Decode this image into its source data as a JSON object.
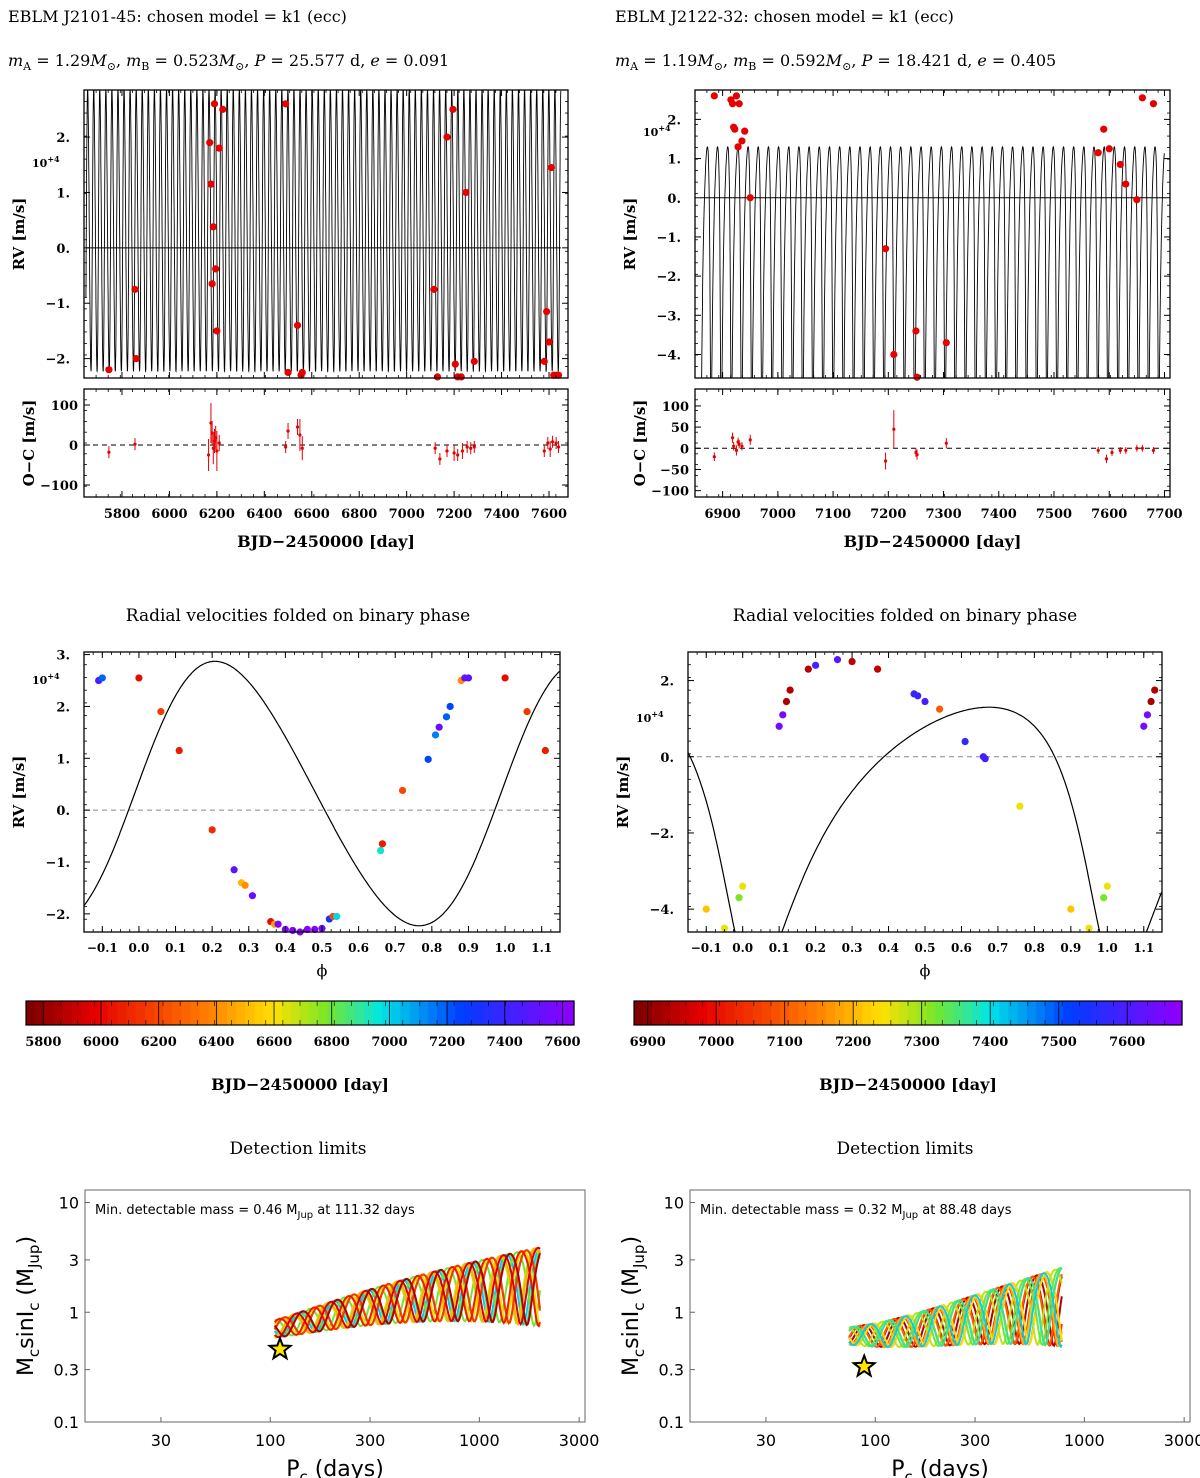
{
  "colors": {
    "point": "#e60000",
    "model": "#000000",
    "frame": "#000000",
    "star": "#ffe600"
  },
  "left": {
    "title": "EBLM J2101-45: chosen model = k1 (ecc)",
    "params": {
      "mA_label": "m",
      "mA_sub": "A",
      "mA_val": " = 1.29",
      "mA_unit": "M",
      "mA_sun": "⊙",
      "mB_label": "m",
      "mB_sub": "B",
      "mB_val": " = 0.523",
      "mB_unit": "M",
      "mB_sun": "⊙",
      "P_label": "P",
      "P_val": " = 25.577 d, ",
      "e_label": "e",
      "e_val": " = 0.091"
    },
    "phase_title": "Radial velocities folded on binary phase",
    "colorbar_ticks": [
      "5800",
      "6000",
      "6200",
      "6400",
      "6600",
      "6800",
      "7000",
      "7200",
      "7400",
      "7600"
    ],
    "colorbar_xlabel": "BJD−2450000 [day]",
    "detection_title": "Detection limits",
    "detection_note": "Min. detectable mass = 0.46 M",
    "detection_note_sub": "Jup",
    "detection_note_end": " at 111.32 days"
  },
  "right": {
    "title": "EBLM J2122-32: chosen model = k1 (ecc)",
    "params": {
      "mA_label": "m",
      "mA_sub": "A",
      "mA_val": " = 1.19",
      "mA_unit": "M",
      "mA_sun": "⊙",
      "mB_label": "m",
      "mB_sub": "B",
      "mB_val": " = 0.592",
      "mB_unit": "M",
      "mB_sun": "⊙",
      "P_label": "P",
      "P_val": " = 18.421 d, ",
      "e_label": "e",
      "e_val": " = 0.405"
    },
    "phase_title": "Radial velocities folded on binary phase",
    "colorbar_ticks": [
      "6900",
      "7000",
      "7100",
      "7200",
      "7300",
      "7400",
      "7500",
      "7600"
    ],
    "colorbar_xlabel": "BJD−2450000 [day]",
    "detection_title": "Detection limits",
    "detection_note": "Min. detectable mass = 0.32 M",
    "detection_note_sub": "Jup",
    "detection_note_end": " at 88.48 days"
  },
  "chart_data": [
    {
      "id": "L_rv_time",
      "type": "scatter",
      "title": "",
      "xlabel": "BJD−2450000 [day]",
      "ylabel": "RV [m/s]",
      "y_multiplier": "10+4",
      "xlim": [
        5640,
        7680
      ],
      "ylim": [
        -2.35,
        2.85
      ],
      "xticks": [
        5800,
        6000,
        6200,
        6400,
        6600,
        6800,
        7000,
        7200,
        7400,
        7600
      ],
      "yticks": [
        -2,
        -1,
        0,
        1,
        2
      ],
      "ytick_labels": [
        "−2.",
        "−1.",
        "0.",
        "1.",
        "2."
      ],
      "model": {
        "K": 2.55,
        "offset": 0.3,
        "period": 25.577,
        "t0": 5650
      },
      "points": {
        "x": [
          5745,
          5855,
          5860,
          6170,
          6175,
          6180,
          6185,
          6190,
          6195,
          6200,
          6210,
          6225,
          6490,
          6500,
          6540,
          6555,
          6560,
          7115,
          7130,
          7170,
          7195,
          7205,
          7215,
          7230,
          7250,
          7285,
          7580,
          7590,
          7600,
          7610,
          7620,
          7630,
          7640
        ],
        "y": [
          -2.2,
          -0.75,
          -2.0,
          1.9,
          1.15,
          -0.65,
          0.38,
          2.6,
          -0.38,
          -1.5,
          1.8,
          2.5,
          2.6,
          -2.25,
          -1.4,
          -2.3,
          -2.25,
          -0.75,
          -2.4,
          2.0,
          2.5,
          -2.1,
          -2.4,
          -2.35,
          1.0,
          -2.05,
          -2.05,
          -1.15,
          -1.7,
          1.45,
          -2.3,
          -2.3,
          -2.3
        ]
      }
    },
    {
      "id": "L_oc",
      "type": "scatter",
      "title": "",
      "xlabel": "BJD−2450000 [day]",
      "ylabel": "O−C [m/s]",
      "xlim": [
        5640,
        7680
      ],
      "ylim": [
        -130,
        140
      ],
      "yticks": [
        -100,
        0,
        100
      ],
      "points": {
        "x": [
          5745,
          5855,
          6165,
          6175,
          6180,
          6185,
          6190,
          6195,
          6200,
          6210,
          6490,
          6500,
          6540,
          6550,
          6560,
          7120,
          7140,
          7170,
          7200,
          7215,
          7235,
          7255,
          7270,
          7285,
          7580,
          7595,
          7605,
          7615,
          7630,
          7640
        ],
        "y": [
          -18,
          2,
          -25,
          55,
          30,
          -8,
          10,
          18,
          -15,
          5,
          -5,
          35,
          45,
          25,
          -8,
          -8,
          -35,
          -15,
          -20,
          -25,
          -15,
          -5,
          -8,
          -5,
          -15,
          5,
          -10,
          8,
          5,
          -5
        ],
        "err": [
          15,
          15,
          40,
          50,
          30,
          40,
          30,
          30,
          50,
          20,
          15,
          20,
          20,
          40,
          30,
          15,
          15,
          15,
          20,
          15,
          20,
          15,
          15,
          15,
          15,
          15,
          20,
          15,
          15,
          15
        ]
      }
    },
    {
      "id": "L_phase",
      "type": "scatter",
      "title": "Radial velocities folded on binary phase",
      "xlabel": "ϕ",
      "ylabel": "RV [m/s]",
      "y_multiplier": "10+4",
      "xlim": [
        -0.15,
        1.15
      ],
      "ylim": [
        -2.35,
        3.05
      ],
      "xticks": [
        -0.1,
        0.0,
        0.1,
        0.2,
        0.3,
        0.4,
        0.5,
        0.6,
        0.7,
        0.8,
        0.9,
        1.0,
        1.1
      ],
      "xtick_labels": [
        "−0.1",
        "0.0",
        "0.1",
        "0.2",
        "0.3",
        "0.4",
        "0.5",
        "0.6",
        "0.7",
        "0.8",
        "0.9",
        "1.0",
        "1.1"
      ],
      "yticks": [
        -2,
        -1,
        0,
        1,
        2,
        3
      ],
      "ytick_labels": [
        "−2.",
        "−1.",
        "0.",
        "1.",
        "2.",
        "3."
      ],
      "model": {
        "K": 2.55,
        "offset": 0.3,
        "e": 0.091,
        "omega": 4.8
      },
      "points": {
        "phi": [
          -0.11,
          -0.1,
          0.0,
          0.06,
          0.11,
          0.2,
          0.26,
          0.28,
          0.29,
          0.31,
          0.36,
          0.37,
          0.38,
          0.4,
          0.42,
          0.44,
          0.46,
          0.48,
          0.5,
          0.52,
          0.53,
          0.54,
          0.66,
          0.665,
          0.72,
          0.79,
          0.81,
          0.82,
          0.84,
          0.85,
          0.88,
          0.89,
          0.9,
          1.0,
          1.06,
          1.11
        ],
        "rv": [
          2.5,
          2.55,
          2.55,
          1.9,
          1.15,
          -0.38,
          -1.15,
          -1.4,
          -1.45,
          -1.65,
          -2.15,
          -2.2,
          -2.2,
          -2.3,
          -2.32,
          -2.35,
          -2.3,
          -2.3,
          -2.28,
          -2.1,
          -2.05,
          -2.05,
          -0.78,
          -0.65,
          0.38,
          0.98,
          1.45,
          1.6,
          1.8,
          2.0,
          2.5,
          2.55,
          2.55,
          2.55,
          1.9,
          1.15
        ],
        "t": [
          7450,
          7200,
          6000,
          6150,
          6050,
          6100,
          7500,
          6500,
          6400,
          7550,
          6000,
          6450,
          7600,
          7650,
          7600,
          7600,
          7650,
          7650,
          7550,
          7300,
          6200,
          7000,
          6950,
          6050,
          6200,
          7250,
          7150,
          7550,
          7200,
          7250,
          6400,
          7550,
          7500,
          6000,
          6150,
          6050
        ]
      }
    },
    {
      "id": "L_colorbar",
      "type": "heatmap",
      "title": "",
      "xlabel": "BJD−2450000 [day]",
      "range": [
        5740,
        7640
      ],
      "ticks": [
        5800,
        6000,
        6200,
        6400,
        6600,
        6800,
        7000,
        7200,
        7400,
        7600
      ]
    },
    {
      "id": "L_detect",
      "type": "line",
      "title": "Detection limits",
      "xlabel": "P_c (days)",
      "ylabel": "M_c sinI_c (M_Jup)",
      "xscale": "log",
      "yscale": "log",
      "xlim": [
        13,
        3200
      ],
      "ylim": [
        0.1,
        13
      ],
      "xticks": [
        30,
        100,
        300,
        1000,
        3000
      ],
      "xtick_labels": [
        "30",
        "100",
        "300",
        "1000",
        "3000"
      ],
      "yticks": [
        0.1,
        0.3,
        1,
        3,
        10
      ],
      "ytick_labels": [
        "0.1",
        "0.3",
        "1",
        "3",
        "10"
      ],
      "note": "Min. detectable mass = 0.46 M_Jup at 111.32 days",
      "star": {
        "P": 111.32,
        "M": 0.46
      },
      "curves": {
        "count": 12,
        "p_start": 105,
        "p_end": 1950,
        "seed": 3
      }
    },
    {
      "id": "R_rv_time",
      "type": "scatter",
      "title": "",
      "xlabel": "BJD−2450000 [day]",
      "ylabel": "RV [m/s]",
      "y_multiplier": "10+4",
      "xlim": [
        6850,
        7710
      ],
      "ylim": [
        -4.6,
        2.75
      ],
      "xticks": [
        6900,
        7000,
        7100,
        7200,
        7300,
        7400,
        7500,
        7600,
        7700
      ],
      "yticks": [
        -4,
        -3,
        -2,
        -1,
        0,
        1,
        2
      ],
      "ytick_labels": [
        "−4.",
        "−3.",
        "−2.",
        "−1.",
        "0.",
        "1.",
        "2."
      ],
      "model": {
        "K": 3.6,
        "offset": -1.05,
        "period": 18.421,
        "t0": 6860
      },
      "points": {
        "x": [
          6885,
          6915,
          6918,
          6920,
          6922,
          6925,
          6928,
          6930,
          6935,
          6940,
          6950,
          7195,
          7210,
          7250,
          7252,
          7305,
          7580,
          7590,
          7600,
          7620,
          7630,
          7650,
          7660,
          7680
        ],
        "y": [
          2.6,
          2.5,
          2.4,
          1.8,
          1.75,
          2.6,
          1.3,
          2.4,
          1.45,
          1.7,
          0.0,
          -1.3,
          -4.0,
          -3.4,
          -4.6,
          -3.7,
          1.15,
          1.75,
          1.25,
          0.85,
          0.35,
          -0.05,
          2.55,
          2.4
        ]
      }
    },
    {
      "id": "R_oc",
      "type": "scatter",
      "title": "",
      "xlabel": "BJD−2450000 [day]",
      "ylabel": "O−C [m/s]",
      "xlim": [
        6850,
        7710
      ],
      "ylim": [
        -115,
        140
      ],
      "yticks": [
        -100,
        -50,
        0,
        50,
        100
      ],
      "points": {
        "x": [
          6885,
          6918,
          6920,
          6925,
          6928,
          6930,
          6935,
          6950,
          7195,
          7210,
          7250,
          7252,
          7305,
          7580,
          7595,
          7605,
          7620,
          7630,
          7650,
          7660,
          7680
        ],
        "y": [
          -20,
          25,
          5,
          -5,
          15,
          10,
          5,
          20,
          -30,
          45,
          -10,
          -15,
          12,
          -5,
          -25,
          -10,
          -5,
          -5,
          0,
          0,
          -5
        ],
        "err": [
          10,
          12,
          10,
          12,
          10,
          10,
          10,
          12,
          20,
          45,
          10,
          12,
          12,
          8,
          10,
          8,
          8,
          8,
          8,
          8,
          8
        ]
      }
    },
    {
      "id": "R_phase",
      "type": "scatter",
      "title": "Radial velocities folded on binary phase",
      "xlabel": "ϕ",
      "ylabel": "RV [m/s]",
      "y_multiplier": "10+4",
      "xlim": [
        -0.15,
        1.15
      ],
      "ylim": [
        -4.6,
        2.75
      ],
      "xticks": [
        -0.1,
        0.0,
        0.1,
        0.2,
        0.3,
        0.4,
        0.5,
        0.6,
        0.7,
        0.8,
        0.9,
        1.0,
        1.1
      ],
      "xtick_labels": [
        "−0.1",
        "0.0",
        "0.1",
        "0.2",
        "0.3",
        "0.4",
        "0.5",
        "0.6",
        "0.7",
        "0.8",
        "0.9",
        "1.0",
        "1.1"
      ],
      "yticks": [
        -4,
        -2,
        0,
        2
      ],
      "ytick_labels": [
        "−4.",
        "−2.",
        "0.",
        "2."
      ],
      "model": {
        "K": 3.6,
        "offset": -1.05,
        "e": 0.405,
        "omega": 2.6
      },
      "points": {
        "phi": [
          -0.1,
          -0.05,
          -0.01,
          0.0,
          0.1,
          0.11,
          0.12,
          0.13,
          0.18,
          0.2,
          0.26,
          0.3,
          0.37,
          0.47,
          0.48,
          0.5,
          0.54,
          0.61,
          0.66,
          0.665,
          0.76,
          0.9,
          0.95,
          0.99,
          1.0,
          1.1,
          1.11,
          1.12,
          1.13
        ],
        "rv": [
          -4.0,
          -4.5,
          -3.7,
          -3.4,
          0.8,
          1.1,
          1.45,
          1.75,
          2.3,
          2.4,
          2.55,
          2.5,
          2.3,
          1.65,
          1.6,
          1.45,
          1.25,
          0.4,
          0.0,
          -0.05,
          -1.3,
          -4.0,
          -4.5,
          -3.7,
          -3.4,
          0.8,
          1.1,
          1.45,
          1.75
        ],
        "t": [
          7210,
          7252,
          7320,
          7250,
          7650,
          7660,
          6920,
          6925,
          6930,
          7600,
          7620,
          6935,
          6940,
          7580,
          7590,
          7600,
          7100,
          7580,
          7600,
          7600,
          7250,
          7210,
          7252,
          7320,
          7250,
          7650,
          7660,
          6920,
          6925
        ]
      }
    },
    {
      "id": "R_colorbar",
      "type": "heatmap",
      "title": "",
      "xlabel": "BJD−2450000 [day]",
      "range": [
        6880,
        7680
      ],
      "ticks": [
        6900,
        7000,
        7100,
        7200,
        7300,
        7400,
        7500,
        7600
      ]
    },
    {
      "id": "R_detect",
      "type": "line",
      "title": "Detection limits",
      "xlabel": "P_c (days)",
      "ylabel": "M_c sinI_c (M_Jup)",
      "xscale": "log",
      "yscale": "log",
      "xlim": [
        13,
        3200
      ],
      "ylim": [
        0.1,
        13
      ],
      "xticks": [
        30,
        100,
        300,
        1000,
        3000
      ],
      "xtick_labels": [
        "30",
        "100",
        "300",
        "1000",
        "3000"
      ],
      "yticks": [
        0.1,
        0.3,
        1,
        3,
        10
      ],
      "ytick_labels": [
        "0.1",
        "0.3",
        "1",
        "3",
        "10"
      ],
      "note": "Min. detectable mass = 0.32 M_Jup at 88.48 days",
      "star": {
        "P": 88.48,
        "M": 0.32
      },
      "curves": {
        "count": 12,
        "p_start": 75,
        "p_end": 780,
        "seed": 7
      }
    }
  ]
}
